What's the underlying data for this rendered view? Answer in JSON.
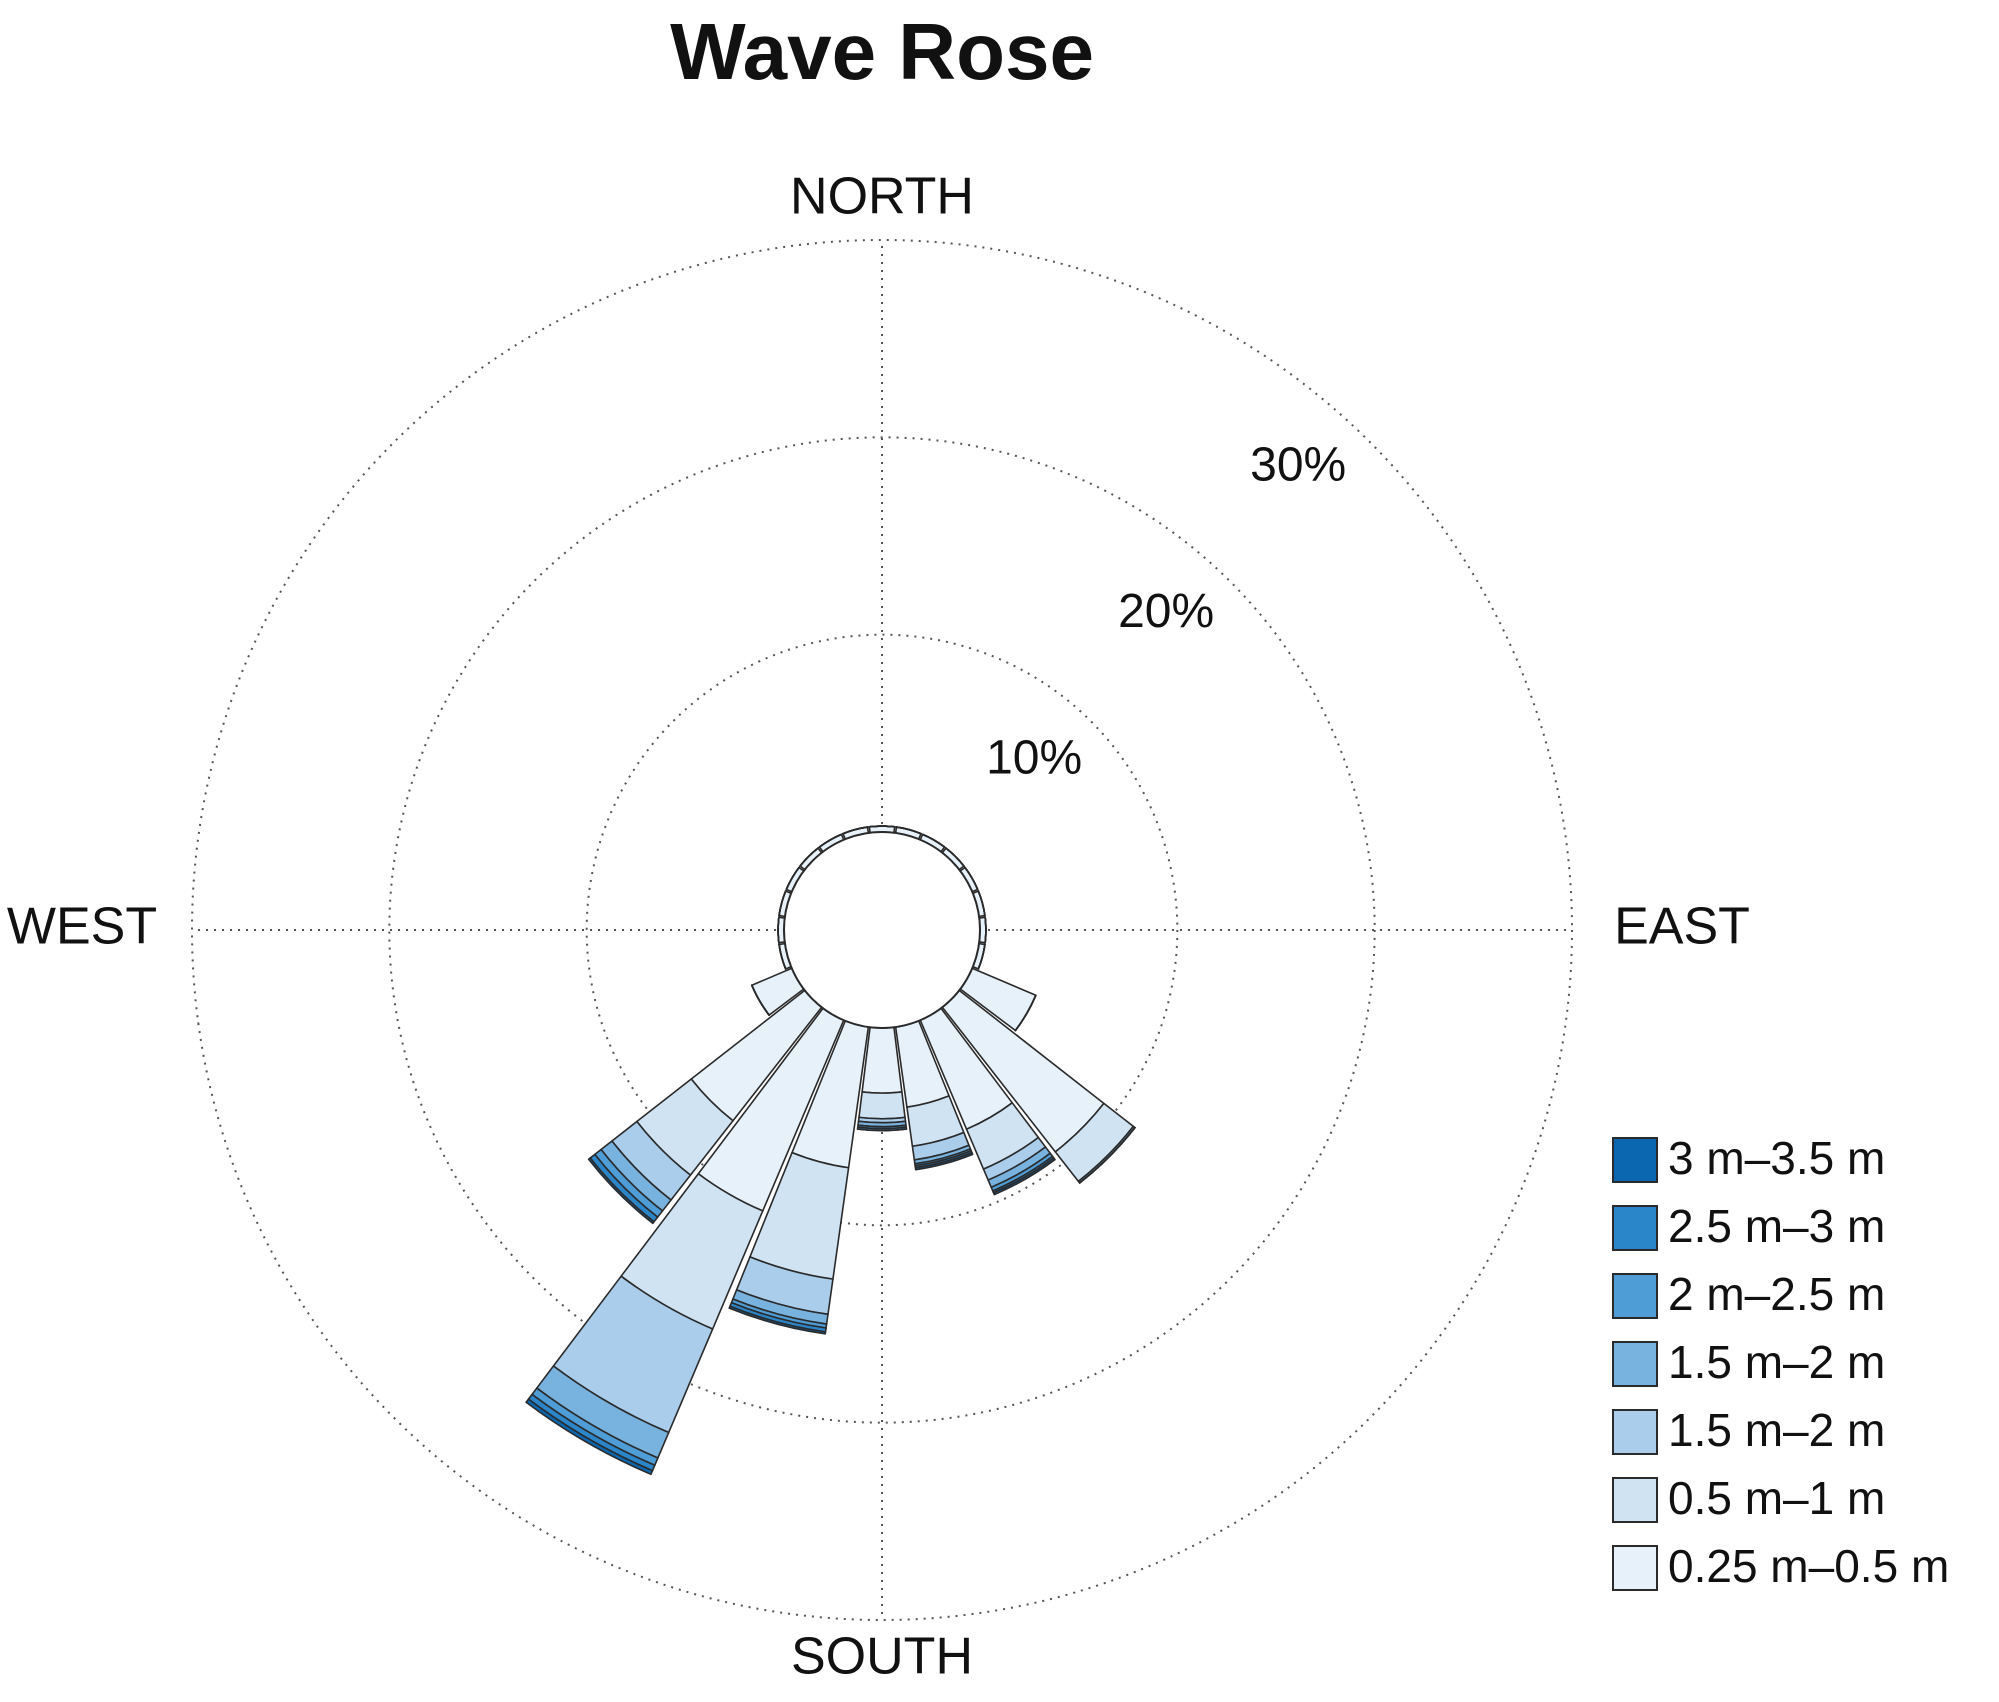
{
  "chart_data": {
    "type": "rose",
    "title": "Wave Rose",
    "x": [
      0,
      15,
      30,
      45,
      60,
      75,
      90,
      105,
      120,
      135,
      150,
      165,
      180,
      195,
      210,
      225,
      240,
      255,
      270,
      285,
      300,
      315,
      330,
      345
    ],
    "xlim": [
      0,
      360
    ],
    "xticks": [
      {
        "value": 0,
        "label": "NORTH"
      },
      {
        "value": 90,
        "label": "EAST"
      },
      {
        "value": 180,
        "label": "SOUTH"
      },
      {
        "value": 270,
        "label": "WEST"
      }
    ],
    "ylim": [
      0,
      30
    ],
    "yticks": [
      {
        "value": 10,
        "label": "10%"
      },
      {
        "value": 20,
        "label": "20%"
      },
      {
        "value": 30,
        "label": "30%"
      }
    ],
    "grid": true,
    "legend": "lower right",
    "series": [
      {
        "name": "0.25 m–0.5 m",
        "color": "#e6f1f9",
        "values": [
          0.3,
          0.3,
          0.3,
          0.3,
          0.3,
          0.3,
          0.3,
          0.3,
          3.5,
          9.3,
          6.0,
          4.1,
          3.3,
          7.2,
          10.5,
          7.3,
          2.2,
          0.3,
          0.3,
          0.3,
          0.3,
          0.3,
          0.3,
          0.3
        ]
      },
      {
        "name": "0.5 m–1 m",
        "color": "#cfe3f3",
        "values": [
          0,
          0,
          0,
          0,
          0,
          0,
          0,
          0,
          0,
          1.9,
          2.2,
          2.0,
          1.3,
          5.7,
          6.5,
          3.5,
          0,
          0,
          0,
          0,
          0,
          0,
          0,
          0
        ]
      },
      {
        "name": "1.5 m–2 m",
        "color": "#a9cdea",
        "values": [
          0,
          0,
          0,
          0,
          0,
          0,
          0,
          0,
          0,
          0,
          0.6,
          0.7,
          0.2,
          1.8,
          5.7,
          1.6,
          0,
          0,
          0,
          0,
          0,
          0,
          0,
          0
        ]
      },
      {
        "name": "1.5 m–2 m",
        "color": "#78b3df",
        "values": [
          0,
          0,
          0,
          0,
          0,
          0,
          0,
          0,
          0,
          0.1,
          0.4,
          0.2,
          0.2,
          0.5,
          1.4,
          0.7,
          0,
          0,
          0,
          0,
          0,
          0,
          0,
          0
        ]
      },
      {
        "name": "2 m–2.5 m",
        "color": "#4e9dd6",
        "values": [
          0,
          0,
          0,
          0,
          0,
          0,
          0,
          0,
          0,
          0,
          0.2,
          0.1,
          0.1,
          0.2,
          0.4,
          0.4,
          0,
          0,
          0,
          0,
          0,
          0,
          0,
          0
        ]
      },
      {
        "name": "2.5 m–3 m",
        "color": "#2b85c9",
        "values": [
          0,
          0,
          0,
          0,
          0,
          0,
          0,
          0,
          0,
          0,
          0.1,
          0.1,
          0.1,
          0.2,
          0.3,
          0.3,
          0,
          0,
          0,
          0,
          0,
          0,
          0,
          0
        ]
      },
      {
        "name": "3 m–3.5 m",
        "color": "#0a67b0",
        "values": [
          0,
          0,
          0,
          0,
          0,
          0,
          0,
          0,
          0,
          0,
          0.1,
          0.1,
          0,
          0.1,
          0.2,
          0.1,
          0,
          0,
          0,
          0,
          0,
          0,
          0,
          0
        ]
      }
    ]
  }
}
